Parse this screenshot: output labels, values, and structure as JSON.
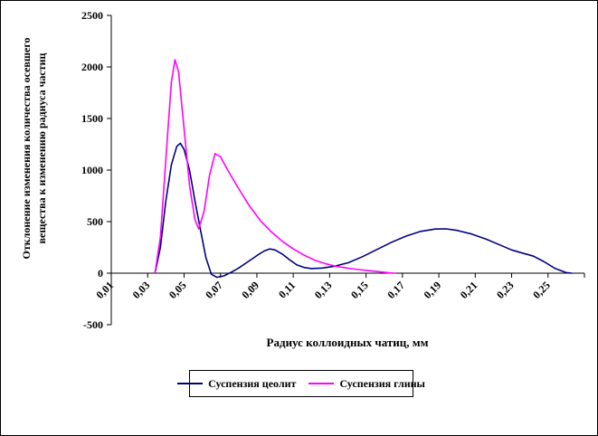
{
  "chart_data": {
    "type": "line",
    "title": "",
    "xlabel": "Радиус коллоидных чатиц, мм",
    "ylabel_lines": [
      "Отклонение изменения количества осевшего",
      "вещества к изменению радиуса частиц"
    ],
    "xlim": [
      0.01,
      0.27
    ],
    "ylim": [
      -500,
      2500
    ],
    "grid": false,
    "legend_position": "bottom",
    "xticks": {
      "values": [
        0.01,
        0.03,
        0.05,
        0.07,
        0.09,
        0.11,
        0.13,
        0.15,
        0.17,
        0.19,
        0.21,
        0.23,
        0.25
      ],
      "labels": [
        "0,01",
        "0,03",
        "0,05",
        "0,07",
        "0,09",
        "0,11",
        "0,13",
        "0,15",
        "0,17",
        "0,19",
        "0,21",
        "0,23",
        "0,25"
      ]
    },
    "yticks": {
      "values": [
        -500,
        0,
        500,
        1000,
        1500,
        2000,
        2500
      ],
      "labels": [
        "-500",
        "0",
        "500",
        "1000",
        "1500",
        "2000",
        "2500"
      ]
    },
    "axis_color": "#000000",
    "series": [
      {
        "name": "Суспензия цеолит",
        "color": "#000080",
        "points": [
          [
            0.034,
            0
          ],
          [
            0.037,
            250
          ],
          [
            0.04,
            700
          ],
          [
            0.043,
            1050
          ],
          [
            0.046,
            1230
          ],
          [
            0.048,
            1260
          ],
          [
            0.05,
            1200
          ],
          [
            0.053,
            1000
          ],
          [
            0.056,
            700
          ],
          [
            0.059,
            420
          ],
          [
            0.062,
            150
          ],
          [
            0.065,
            -10
          ],
          [
            0.068,
            -40
          ],
          [
            0.072,
            -25
          ],
          [
            0.076,
            10
          ],
          [
            0.08,
            50
          ],
          [
            0.085,
            110
          ],
          [
            0.09,
            170
          ],
          [
            0.094,
            215
          ],
          [
            0.097,
            235
          ],
          [
            0.1,
            225
          ],
          [
            0.104,
            185
          ],
          [
            0.108,
            130
          ],
          [
            0.112,
            80
          ],
          [
            0.116,
            55
          ],
          [
            0.12,
            45
          ],
          [
            0.126,
            50
          ],
          [
            0.132,
            65
          ],
          [
            0.14,
            100
          ],
          [
            0.148,
            160
          ],
          [
            0.156,
            230
          ],
          [
            0.164,
            300
          ],
          [
            0.172,
            360
          ],
          [
            0.18,
            405
          ],
          [
            0.188,
            428
          ],
          [
            0.194,
            430
          ],
          [
            0.2,
            415
          ],
          [
            0.208,
            380
          ],
          [
            0.216,
            330
          ],
          [
            0.224,
            270
          ],
          [
            0.23,
            225
          ],
          [
            0.236,
            195
          ],
          [
            0.242,
            165
          ],
          [
            0.248,
            110
          ],
          [
            0.254,
            45
          ],
          [
            0.26,
            5
          ],
          [
            0.263,
            0
          ]
        ]
      },
      {
        "name": "Суспензия глины",
        "color": "#FF00FF",
        "points": [
          [
            0.034,
            0
          ],
          [
            0.037,
            350
          ],
          [
            0.04,
            1100
          ],
          [
            0.043,
            1850
          ],
          [
            0.045,
            2070
          ],
          [
            0.047,
            1950
          ],
          [
            0.05,
            1400
          ],
          [
            0.053,
            850
          ],
          [
            0.056,
            520
          ],
          [
            0.058,
            430
          ],
          [
            0.061,
            600
          ],
          [
            0.064,
            950
          ],
          [
            0.067,
            1160
          ],
          [
            0.07,
            1130
          ],
          [
            0.074,
            1000
          ],
          [
            0.08,
            820
          ],
          [
            0.086,
            650
          ],
          [
            0.092,
            510
          ],
          [
            0.098,
            400
          ],
          [
            0.104,
            310
          ],
          [
            0.11,
            235
          ],
          [
            0.116,
            175
          ],
          [
            0.122,
            125
          ],
          [
            0.128,
            90
          ],
          [
            0.134,
            65
          ],
          [
            0.14,
            48
          ],
          [
            0.146,
            35
          ],
          [
            0.152,
            24
          ],
          [
            0.158,
            12
          ],
          [
            0.163,
            3
          ],
          [
            0.166,
            0
          ]
        ]
      }
    ]
  }
}
